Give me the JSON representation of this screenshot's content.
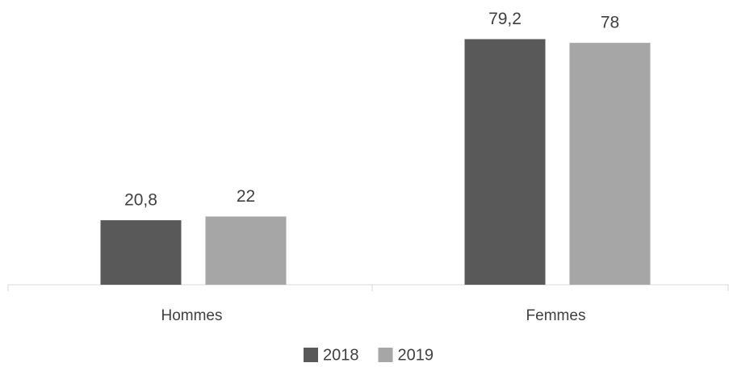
{
  "chart_data": {
    "type": "bar",
    "categories": [
      "Hommes",
      "Femmes"
    ],
    "series": [
      {
        "name": "2018",
        "color": "#595959",
        "values": [
          20.8,
          79.2
        ],
        "value_labels": [
          "20,8",
          "79,2"
        ]
      },
      {
        "name": "2019",
        "color": "#a6a6a6",
        "values": [
          22,
          78
        ],
        "value_labels": [
          "22",
          "78"
        ]
      }
    ],
    "ylim": [
      0,
      90
    ],
    "legend": "bottom"
  }
}
